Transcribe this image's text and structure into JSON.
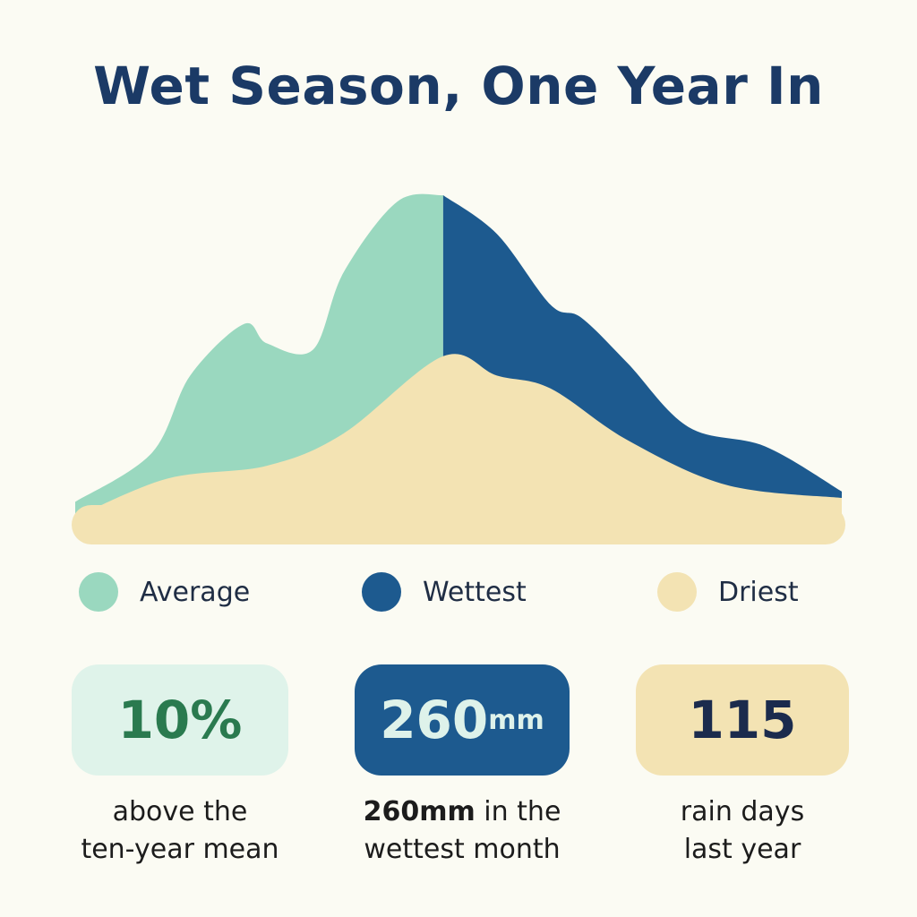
{
  "title": "Wet Season, One Year In",
  "colors": {
    "background": "#fbfbf3",
    "title": "#1b3a66",
    "average": "#9ad8bf",
    "wettest": "#1d5a8f",
    "driest": "#f3e3b3",
    "average_box": "#dff3ea",
    "average_text": "#2a7a4f",
    "wettest_text": "#def2ea",
    "driest_text": "#1b2b4d"
  },
  "legend": {
    "average": "Average",
    "wettest": "Wettest",
    "driest": "Driest"
  },
  "stats": [
    {
      "value": "10%",
      "unit": "",
      "caption_bold": "",
      "caption_line1": "above the",
      "caption_line2": "ten-year mean"
    },
    {
      "value": "260",
      "unit": "mm",
      "caption_bold": "260mm",
      "caption_line1": " in the",
      "caption_line2": "wettest month"
    },
    {
      "value": "115",
      "unit": "",
      "caption_bold": "",
      "caption_line1": "rain days",
      "caption_line2": "last year"
    }
  ],
  "chart_data": {
    "type": "area",
    "title": "Wet Season, One Year In",
    "xlabel": "",
    "ylabel": "",
    "axes_shown": false,
    "grid": false,
    "legend_position": "bottom",
    "ylim": [
      0,
      260
    ],
    "series": [
      {
        "name": "Average",
        "color": "#9ad8bf",
        "x": [
          0,
          0.1,
          0.15,
          0.22,
          0.25,
          0.31,
          0.35,
          0.42,
          0.48
        ],
        "values": [
          22,
          60,
          120,
          160,
          145,
          140,
          200,
          255,
          260
        ]
      },
      {
        "name": "Wettest",
        "color": "#1d5a8f",
        "x": [
          0.48,
          0.55,
          0.62,
          0.66,
          0.72,
          0.8,
          0.9,
          1.0
        ],
        "values": [
          260,
          230,
          175,
          165,
          130,
          80,
          65,
          30
        ]
      },
      {
        "name": "Driest",
        "color": "#f3e3b3",
        "x": [
          0,
          0.12,
          0.25,
          0.35,
          0.48,
          0.55,
          0.62,
          0.72,
          0.85,
          1.0
        ],
        "values": [
          10,
          40,
          50,
          75,
          135,
          120,
          110,
          70,
          35,
          25
        ]
      }
    ]
  }
}
